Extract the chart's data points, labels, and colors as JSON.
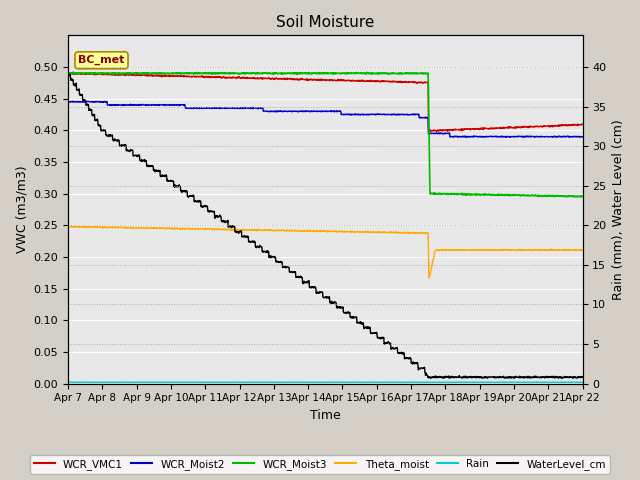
{
  "title": "Soil Moisture",
  "xlabel": "Time",
  "ylabel_left": "VWC (m3/m3)",
  "ylabel_right": "Rain (mm), Water Level (cm)",
  "ylim_left": [
    0.0,
    0.55
  ],
  "ylim_right": [
    0.0,
    44
  ],
  "yticks_left": [
    0.0,
    0.05,
    0.1,
    0.15,
    0.2,
    0.25,
    0.3,
    0.35,
    0.4,
    0.45,
    0.5
  ],
  "yticks_right": [
    0,
    5,
    10,
    15,
    20,
    25,
    30,
    35,
    40
  ],
  "xtick_labels": [
    "Apr 7",
    "Apr 8",
    "Apr 9",
    "Apr 10",
    "Apr 11",
    "Apr 12",
    "Apr 13",
    "Apr 14",
    "Apr 15",
    "Apr 16",
    "Apr 17",
    "Apr 18",
    "Apr 19",
    "Apr 20",
    "Apr 21",
    "Apr 22"
  ],
  "annotation_text": "BC_met",
  "background_color": "#d4d0c8",
  "plot_bg_color": "#e8e8e8",
  "grid_color": "#ffffff",
  "colors": {
    "WCR_VMC1": "#cc0000",
    "WCR_Moist2": "#0000cc",
    "WCR_Moist3": "#00bb00",
    "Theta_moist": "#ffaa00",
    "Rain": "#00cccc",
    "WaterLevel_cm": "#000000"
  },
  "legend_labels": [
    "WCR_VMC1",
    "WCR_Moist2",
    "WCR_Moist3",
    "Theta_moist",
    "Rain",
    "WaterLevel_cm"
  ]
}
